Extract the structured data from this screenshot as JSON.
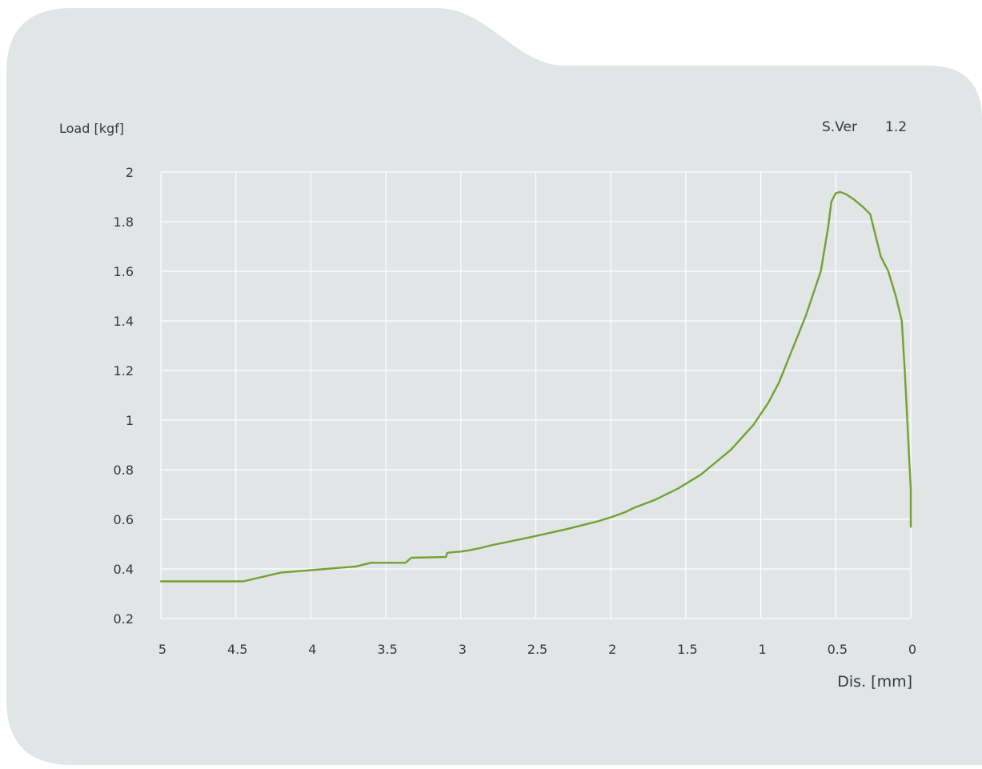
{
  "colors": {
    "panel": "#e1e5e6",
    "grid": "#ffffff",
    "curve": "#72a232",
    "text": "#333a3e"
  },
  "chart_data": {
    "type": "line",
    "title": "",
    "ylabel": "Load [kgf]",
    "xlabel": "Dis.  [mm]",
    "version_label": "S.Ver",
    "version_value": "1.2",
    "xlim": [
      5,
      0
    ],
    "ylim": [
      0.2,
      2
    ],
    "x_reversed": true,
    "grid": true,
    "legend": "none",
    "x_ticks": [
      "5",
      "4.5",
      "4",
      "3.5",
      "3",
      "2.5",
      "2",
      "1.5",
      "1",
      "0.5",
      "0"
    ],
    "y_ticks": [
      "0.2",
      "0.4",
      "0.6",
      "0.8",
      "1",
      "1.2",
      "1.4",
      "1.6",
      "1.8",
      "2"
    ],
    "series": [
      {
        "x": [
          5,
          4.45,
          4.2,
          3.7,
          3.6,
          3.37,
          3.33,
          3.1,
          3.09,
          3.05,
          3.0,
          2.95,
          2.88,
          2.8,
          2.6,
          2.5,
          2.3,
          2.1,
          2.0,
          1.9,
          1.85,
          1.7,
          1.55,
          1.4,
          1.2,
          1.05,
          0.95,
          0.88,
          0.8,
          0.7,
          0.6,
          0.55,
          0.53,
          0.5,
          0.47,
          0.43,
          0.38,
          0.32,
          0.27,
          0.25,
          0.2,
          0.15,
          0.1,
          0.06,
          0.05,
          0.04,
          0.0,
          0.0
        ],
        "y": [
          0.35,
          0.35,
          0.385,
          0.41,
          0.425,
          0.425,
          0.445,
          0.448,
          0.465,
          0.468,
          0.47,
          0.475,
          0.483,
          0.495,
          0.52,
          0.533,
          0.56,
          0.59,
          0.608,
          0.63,
          0.645,
          0.68,
          0.725,
          0.78,
          0.88,
          0.98,
          1.07,
          1.15,
          1.27,
          1.42,
          1.6,
          1.78,
          1.88,
          1.915,
          1.92,
          1.91,
          1.89,
          1.86,
          1.83,
          1.78,
          1.66,
          1.6,
          1.5,
          1.4,
          1.3,
          1.2,
          0.72,
          0.57
        ]
      }
    ]
  }
}
